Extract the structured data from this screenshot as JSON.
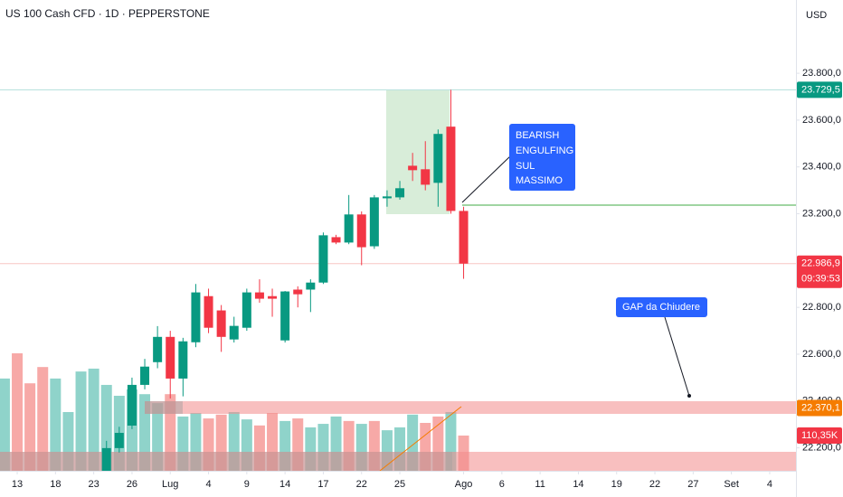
{
  "chart_data": {
    "type": "candlestick",
    "title": "US 100 Cash CFD · 1D · PEPPERSTONE",
    "currency": "USD",
    "up_color": "#089981",
    "down_color": "#f23645",
    "ylim": [
      22102,
      24113
    ],
    "xlim": [
      -1.35,
      61.06
    ],
    "yticks": [
      {
        "value": 22200,
        "label": "22.200,0"
      },
      {
        "value": 22400,
        "label": "22.400,0"
      },
      {
        "value": 22600,
        "label": "22.600,0"
      },
      {
        "value": 22800,
        "label": "22.800,0"
      },
      {
        "value": 23200,
        "label": "23.200,0"
      },
      {
        "value": 23400,
        "label": "23.400,0"
      },
      {
        "value": 23600,
        "label": "23.600,0"
      },
      {
        "value": 23800,
        "label": "23.800,0"
      }
    ],
    "xticks": [
      {
        "value": 0,
        "label": "13"
      },
      {
        "value": 3,
        "label": "18"
      },
      {
        "value": 6,
        "label": "23"
      },
      {
        "value": 9,
        "label": "26"
      },
      {
        "value": 12,
        "label": "Lug"
      },
      {
        "value": 15,
        "label": "4"
      },
      {
        "value": 18,
        "label": "9"
      },
      {
        "value": 21,
        "label": "14"
      },
      {
        "value": 24,
        "label": "17"
      },
      {
        "value": 27,
        "label": "22"
      },
      {
        "value": 30,
        "label": "25"
      },
      {
        "value": 35,
        "label": "Ago"
      },
      {
        "value": 38,
        "label": "6"
      },
      {
        "value": 41,
        "label": "11"
      },
      {
        "value": 44,
        "label": "14"
      },
      {
        "value": 47,
        "label": "19"
      },
      {
        "value": 50,
        "label": "22"
      },
      {
        "value": 53,
        "label": "27"
      },
      {
        "value": 56,
        "label": "Set"
      },
      {
        "value": 59,
        "label": "4"
      }
    ],
    "grid": false,
    "candles": {
      "x": [
        7,
        8,
        9,
        10,
        11,
        12,
        13,
        14,
        15,
        16,
        17,
        18,
        19,
        20,
        21,
        22,
        23,
        24,
        25,
        26,
        27,
        28,
        29,
        30,
        31,
        32,
        33,
        34,
        35
      ],
      "open": [
        22102,
        22199,
        22295,
        22469,
        22566,
        22674,
        22496,
        22651,
        22848,
        22787,
        22663,
        22713,
        22864,
        22848,
        22659,
        22876,
        22876,
        22906,
        23100,
        23077,
        23197,
        23061,
        23266,
        23270,
        23405,
        23390,
        23332,
        23572,
        23212
      ],
      "high": [
        22230,
        22290,
        22500,
        22580,
        22720,
        22700,
        22670,
        22900,
        22880,
        22810,
        22760,
        22880,
        22920,
        22880,
        22870,
        22890,
        22920,
        23120,
        23110,
        23280,
        23210,
        23280,
        23300,
        23340,
        23460,
        23510,
        23560,
        23729.5,
        23230
      ],
      "low": [
        22080,
        22180,
        22280,
        22450,
        22540,
        22411,
        22420,
        22630,
        22690,
        22610,
        22650,
        22700,
        22820,
        22760,
        22650,
        22800,
        22780,
        22900,
        23070,
        23070,
        22980,
        23050,
        23230,
        23260,
        23340,
        23300,
        23230,
        23200,
        22922
      ],
      "close": [
        22199,
        22264,
        22469,
        22547,
        22674,
        22496,
        22655,
        22864,
        22713,
        22674,
        22721,
        22864,
        22837,
        22837,
        22868,
        22856,
        22906,
        23108,
        23077,
        23197,
        23057,
        23270,
        23274,
        23309,
        23386,
        23324,
        23541,
        23212,
        22986.9
      ]
    },
    "volume": {
      "ylim": [
        0,
        1200
      ],
      "x": [
        -1,
        0,
        1,
        2,
        3,
        4,
        5,
        6,
        7,
        8,
        9,
        10,
        11,
        12,
        13,
        14,
        15,
        16,
        17,
        18,
        19,
        20,
        21,
        22,
        23,
        24,
        25,
        26,
        27,
        28,
        29,
        30,
        31,
        32,
        33,
        34,
        35
      ],
      "values": [
        289,
        368,
        274,
        325,
        289,
        184,
        311,
        320,
        269,
        235,
        255,
        240,
        212,
        240,
        170,
        181,
        164,
        176,
        184,
        161,
        142,
        181,
        156,
        164,
        136,
        147,
        170,
        156,
        147,
        156,
        127,
        136,
        176,
        150,
        170,
        184,
        110.35
      ],
      "colors": [
        "#8fd3ca",
        "#f7a9a7",
        "#f7a9a7",
        "#f7a9a7",
        "#8fd3ca",
        "#8fd3ca",
        "#8fd3ca",
        "#8fd3ca",
        "#8fd3ca",
        "#8fd3ca",
        "#8fd3ca",
        "#8fd3ca",
        "#8fd3ca",
        "#f7a9a7",
        "#8fd3ca",
        "#8fd3ca",
        "#f7a9a7",
        "#f7a9a7",
        "#8fd3ca",
        "#8fd3ca",
        "#f7a9a7",
        "#f7a9a7",
        "#8fd3ca",
        "#f7a9a7",
        "#8fd3ca",
        "#8fd3ca",
        "#8fd3ca",
        "#f7a9a7",
        "#8fd3ca",
        "#f7a9a7",
        "#8fd3ca",
        "#8fd3ca",
        "#8fd3ca",
        "#f7a9a7",
        "#f7a9a7",
        "#8fd3ca",
        "#f7a9a7"
      ],
      "last_label": {
        "value": 110.35,
        "label": "110,35K",
        "color": "#f23645"
      }
    },
    "price_labels": [
      {
        "value": 23729.5,
        "label": "23.729,5",
        "color": "#089981",
        "line_color": "#b2dfdb"
      },
      {
        "value": 22986.9,
        "label": "22.986,9",
        "countdown": "09:39:53",
        "color": "#f23645",
        "line_color": "#f8c5c4"
      },
      {
        "value": 22370.1,
        "label": "22.370,1",
        "color": "#f57c00"
      }
    ],
    "annotations": [
      {
        "lines": [
          "BEARISH",
          "ENGULFING",
          "SUL",
          "MASSIMO"
        ]
      },
      {
        "text": "GAP da Chiudere"
      }
    ]
  }
}
